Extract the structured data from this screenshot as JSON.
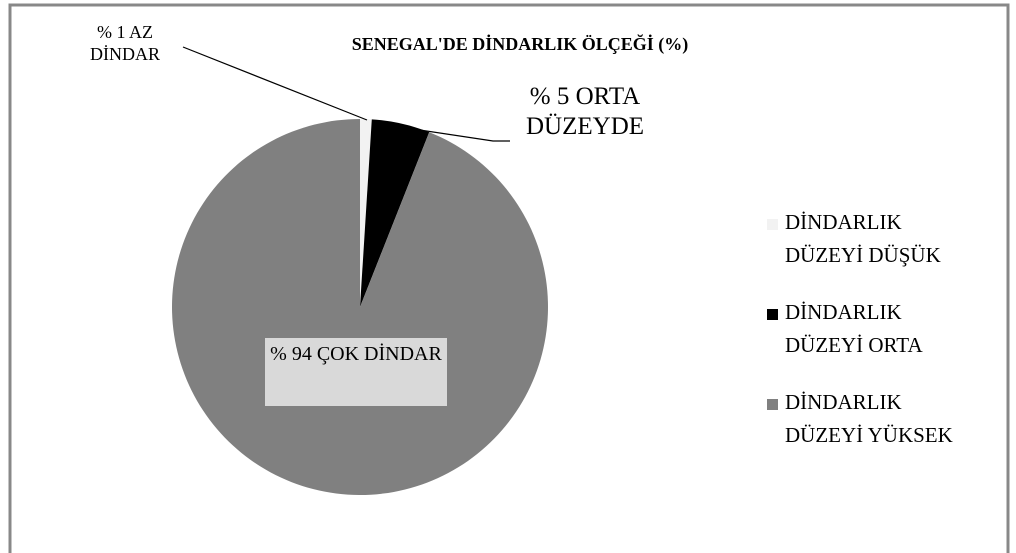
{
  "chart_data": {
    "type": "pie",
    "title": "SENEGAL'DE DİNDARLIK ÖLÇEĞİ (%)",
    "categories": [
      "DİNDARLIK DÜZEYİ DÜŞÜK",
      "DİNDARLIK DÜZEYİ ORTA",
      "DİNDARLIK DÜZEYİ YÜKSEK"
    ],
    "series": [
      {
        "name": "SENEGAL'DE DİNDARLIK ÖLÇEĞİ (%)",
        "values": [
          1,
          5,
          94
        ],
        "value_labels": [
          "% 1 AZ DİNDAR",
          "% 5 ORTA DÜZEYDE",
          "% 94 ÇOK DİNDAR"
        ],
        "colors": [
          "#f2f2f2",
          "#000000",
          "#808080"
        ]
      }
    ],
    "legend": "right"
  }
}
